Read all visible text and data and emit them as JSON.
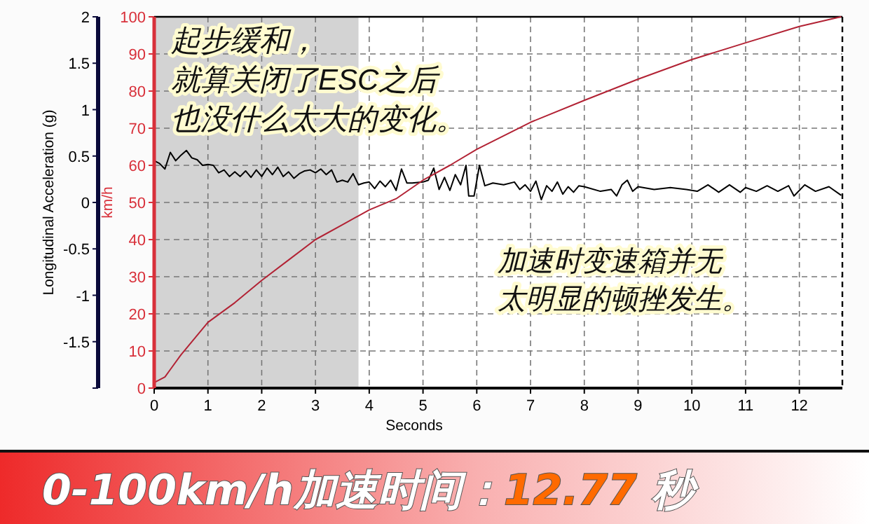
{
  "chart_data": {
    "type": "line",
    "title": "0-100km/h加速时间：12.77 秒",
    "xlabel": "Seconds",
    "ylabel": "Longitudinal Acceleration (g)",
    "y2label": "km/h",
    "annotations": [
      "起步缓和，",
      "就算关闭了ESC之后",
      "也没什么太大的变化。",
      "加速时变速箱并无",
      "太明显的顿挫发生。"
    ],
    "xlim": [
      0,
      12.8
    ],
    "xticks": [
      0,
      1,
      2,
      3,
      4,
      5,
      6,
      7,
      8,
      9,
      10,
      11,
      12
    ],
    "ylim": [
      -2,
      2
    ],
    "yticks": [
      {
        "value": -2,
        "label": null
      },
      -1.5,
      -1,
      -0.5,
      0,
      0.5,
      1,
      1.5,
      2
    ],
    "y2lim": [
      0,
      100
    ],
    "y2ticks": [
      0,
      10,
      20,
      30,
      40,
      50,
      60,
      70,
      80,
      90,
      100
    ],
    "grid": true,
    "bands": [
      {
        "axis": "x",
        "from": 0,
        "to": 3.8,
        "color": "#d3d3d3"
      }
    ],
    "series": [
      {
        "color": "#000000",
        "x": [
          0,
          0.1,
          0.2,
          0.3,
          0.4,
          0.5,
          0.6,
          0.7,
          0.8,
          0.9,
          1.0,
          1.1,
          1.2,
          1.3,
          1.4,
          1.5,
          1.6,
          1.7,
          1.8,
          1.9,
          2.0,
          2.1,
          2.2,
          2.3,
          2.4,
          2.5,
          2.6,
          2.7,
          2.8,
          2.9,
          3.0,
          3.1,
          3.2,
          3.3,
          3.4,
          3.5,
          3.6,
          3.7,
          3.8,
          3.9,
          4.0,
          4.1,
          4.2,
          4.3,
          4.4,
          4.5,
          4.6,
          4.7,
          4.8,
          5.0,
          5.1,
          5.2,
          5.3,
          5.4,
          5.5,
          5.6,
          5.7,
          5.8,
          5.85,
          5.95,
          6.05,
          6.15,
          6.3,
          6.5,
          6.7,
          6.8,
          6.9,
          7.0,
          7.1,
          7.2,
          7.3,
          7.4,
          7.5,
          7.6,
          7.7,
          7.8,
          7.9,
          8.0,
          8.3,
          8.5,
          8.6,
          8.7,
          8.8,
          8.9,
          9.0,
          9.3,
          9.6,
          9.9,
          10.1,
          10.3,
          10.5,
          10.7,
          10.9,
          11.0,
          11.2,
          11.4,
          11.6,
          11.8,
          11.9,
          12.1,
          12.3,
          12.55,
          12.77
        ],
        "values": [
          0.45,
          0.42,
          0.36,
          0.54,
          0.45,
          0.51,
          0.56,
          0.48,
          0.46,
          0.4,
          0.41,
          0.4,
          0.32,
          0.35,
          0.28,
          0.33,
          0.28,
          0.34,
          0.27,
          0.35,
          0.28,
          0.37,
          0.3,
          0.38,
          0.28,
          0.33,
          0.26,
          0.31,
          0.34,
          0.35,
          0.32,
          0.36,
          0.3,
          0.35,
          0.22,
          0.24,
          0.22,
          0.31,
          0.19,
          0.21,
          0.22,
          0.15,
          0.23,
          0.17,
          0.24,
          0.13,
          0.36,
          0.21,
          0.21,
          0.22,
          0.24,
          0.37,
          0.14,
          0.27,
          0.13,
          0.3,
          0.19,
          0.4,
          0.07,
          0.07,
          0.4,
          0.18,
          0.21,
          0.19,
          0.22,
          0.14,
          0.19,
          0.12,
          0.23,
          0.03,
          0.18,
          0.12,
          0.22,
          0.09,
          0.17,
          0.11,
          0.18,
          0.17,
          0.12,
          0.14,
          0.07,
          0.19,
          0.24,
          0.12,
          0.17,
          0.14,
          0.16,
          0.14,
          0.12,
          0.19,
          0.11,
          0.19,
          0.11,
          0.16,
          0.12,
          0.18,
          0.12,
          0.18,
          0.07,
          0.19,
          0.12,
          0.17,
          0.08
        ]
      },
      {
        "color": "#b22234",
        "axis": "y2",
        "x": [
          0,
          0.2,
          0.3,
          0.5,
          1,
          1.5,
          2,
          2.5,
          3,
          3.5,
          4,
          4.5,
          5,
          5.5,
          6,
          7,
          8,
          9,
          10,
          11,
          12,
          12.77
        ],
        "values": [
          1.5,
          3,
          5,
          9,
          17.7,
          23,
          29,
          34.5,
          40,
          44,
          48,
          51,
          56,
          60,
          64.3,
          71.6,
          77.5,
          83.2,
          88.5,
          93,
          97.4,
          100
        ]
      }
    ]
  }
}
